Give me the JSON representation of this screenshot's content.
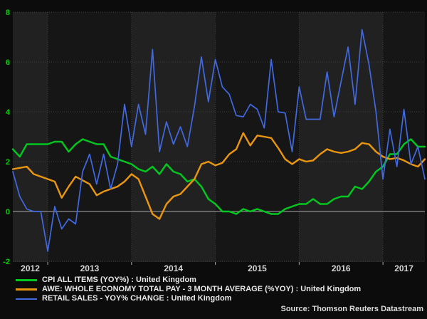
{
  "chart_data": {
    "type": "line",
    "title": "",
    "start": "2012-08",
    "end": "2017-07",
    "x_unit": "month",
    "xlabel": "",
    "ylabel": "",
    "ylim": [
      -2,
      8
    ],
    "y_ticks": [
      8,
      6,
      4,
      2,
      0,
      -2
    ],
    "y_tick_labels": [
      "8",
      "6",
      "4",
      "2",
      "0",
      "-2"
    ],
    "x_tick_labels": [
      "2012",
      "2013",
      "2014",
      "2015",
      "2016",
      "2017"
    ],
    "grid": "horizontal dotted gridlines at even values, solid gray zero line, dotted vertical year lines, alternating shaded year bands",
    "legend_position": "bottom-left",
    "series": [
      {
        "name": "CPI ALL ITEMS (YOY%) : United Kingdom",
        "color": "#00c81e",
        "values": [
          2.5,
          2.2,
          2.7,
          2.7,
          2.7,
          2.7,
          2.8,
          2.8,
          2.4,
          2.7,
          2.9,
          2.8,
          2.7,
          2.7,
          2.2,
          2.1,
          2.0,
          1.9,
          1.7,
          1.6,
          1.8,
          1.5,
          1.9,
          1.6,
          1.5,
          1.2,
          1.3,
          1.0,
          0.5,
          0.3,
          0.0,
          0.0,
          -0.1,
          0.1,
          0.0,
          0.1,
          0.0,
          -0.1,
          -0.1,
          0.1,
          0.2,
          0.3,
          0.3,
          0.5,
          0.3,
          0.3,
          0.5,
          0.6,
          0.6,
          1.0,
          0.9,
          1.2,
          1.6,
          1.8,
          2.3,
          2.3,
          2.7,
          2.9,
          2.6,
          2.6
        ]
      },
      {
        "name": "AWE: WHOLE ECONOMY TOTAL PAY - 3 MONTH AVERAGE (%YOY) : United Kingdom",
        "color": "#eb960f",
        "values": [
          1.7,
          1.75,
          1.8,
          1.5,
          1.4,
          1.3,
          1.2,
          0.55,
          1.0,
          1.4,
          1.25,
          1.1,
          0.65,
          0.8,
          0.9,
          1.0,
          1.2,
          1.5,
          1.3,
          0.6,
          -0.1,
          -0.3,
          0.3,
          0.6,
          0.7,
          1.0,
          1.3,
          1.9,
          2.0,
          1.85,
          1.95,
          2.3,
          2.5,
          3.15,
          2.65,
          3.05,
          3.0,
          2.95,
          2.55,
          2.1,
          1.9,
          2.1,
          2.0,
          2.05,
          2.3,
          2.5,
          2.4,
          2.35,
          2.4,
          2.5,
          2.75,
          2.7,
          2.4,
          2.2,
          2.1,
          2.15,
          2.05,
          1.9,
          1.8,
          2.1
        ]
      },
      {
        "name": "RETAIL SALES - YOY% CHANGE : United Kingdom",
        "color": "#4169e1",
        "values": [
          1.6,
          0.6,
          0.1,
          0.0,
          0.0,
          -1.6,
          0.2,
          -0.7,
          -0.3,
          -0.5,
          1.6,
          2.3,
          1.1,
          2.3,
          0.9,
          1.9,
          4.3,
          2.6,
          4.3,
          3.1,
          6.5,
          2.4,
          3.6,
          2.7,
          3.4,
          2.6,
          4.2,
          6.2,
          4.4,
          6.1,
          5.0,
          4.7,
          3.85,
          3.8,
          4.3,
          4.1,
          3.35,
          6.1,
          4.0,
          3.95,
          2.4,
          5.0,
          3.7,
          3.7,
          3.7,
          5.6,
          3.8,
          5.2,
          6.6,
          4.3,
          7.3,
          5.9,
          4.0,
          1.3,
          3.3,
          1.8,
          4.1,
          1.9,
          2.6,
          1.3
        ]
      }
    ]
  },
  "source": "Source: Thomson Reuters Datastream",
  "colors": {
    "background": "#0c0c0c",
    "band_dark": "#161616",
    "band_light": "#212121",
    "grid_dotted": "#3e3e3e",
    "zero_line": "#8c8c8c",
    "tick": "#aaaaaa",
    "y_label": "#00d400",
    "x_label": "#d6d6d6",
    "legend_text": "#e8e8e8"
  }
}
